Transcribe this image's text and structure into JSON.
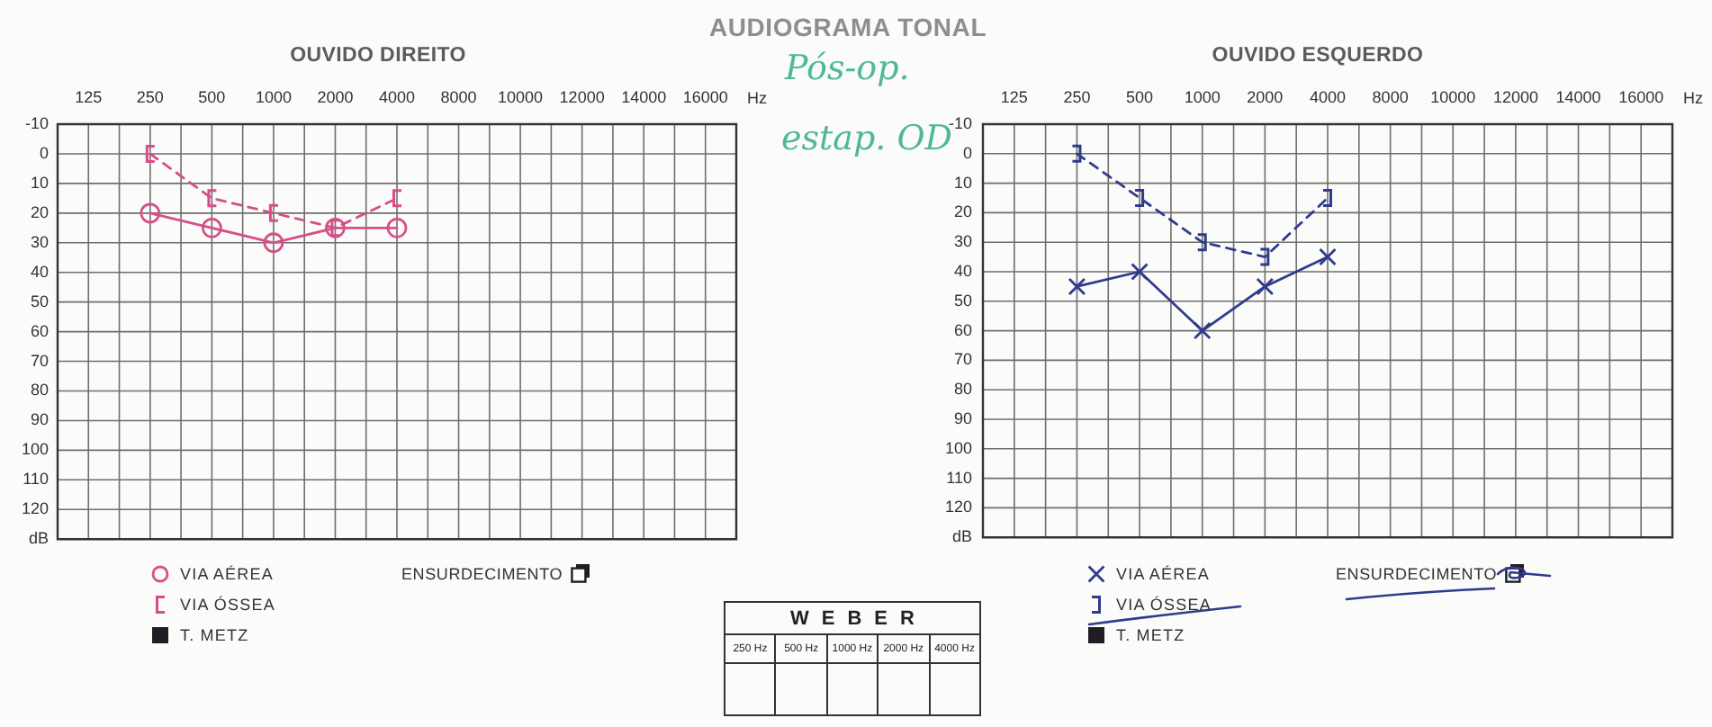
{
  "chart_data": [
    {
      "type": "other",
      "title": "AUDIOGRAMA TONAL",
      "annotations": [
        "Pós-op.",
        "estap. OD"
      ]
    },
    {
      "type": "line",
      "title": "OUVIDO DIREITO",
      "categories": [
        "125",
        "250",
        "500",
        "1000",
        "2000",
        "4000",
        "8000",
        "10000",
        "12000",
        "14000",
        "16000"
      ],
      "xlabel": "Hz",
      "ylim": [
        130,
        -10
      ],
      "yticks": [
        -10,
        0,
        10,
        20,
        30,
        40,
        50,
        60,
        70,
        80,
        90,
        100,
        110,
        120,
        {
          "value": 130,
          "label": "dB"
        }
      ],
      "grid": true,
      "legend": "bottom",
      "series": [
        {
          "name": "VIA AÉREA",
          "color": "#d64f88",
          "marker": "circle",
          "line_style": "solid",
          "values": [
            null,
            20,
            25,
            30,
            25,
            25,
            null,
            null,
            null,
            null,
            null
          ]
        },
        {
          "name": "VIA ÓSSEA",
          "color": "#d64f88",
          "marker": "square",
          "line_style": "dashed",
          "values": [
            null,
            0,
            15,
            20,
            25,
            15,
            null,
            null,
            null,
            null,
            null
          ]
        }
      ],
      "annotations": [
        "T. METZ",
        "ENSURDECIMENTO"
      ]
    },
    {
      "type": "line",
      "title": "OUVIDO ESQUERDO",
      "categories": [
        "125",
        "250",
        "500",
        "1000",
        "2000",
        "4000",
        "8000",
        "10000",
        "12000",
        "14000",
        "16000"
      ],
      "xlabel": "Hz",
      "ylim": [
        130,
        -10
      ],
      "yticks": [
        -10,
        0,
        10,
        20,
        30,
        40,
        50,
        60,
        70,
        80,
        90,
        100,
        110,
        120,
        {
          "value": 130,
          "label": "dB"
        }
      ],
      "grid": true,
      "legend": "bottom",
      "series": [
        {
          "name": "VIA AÉREA",
          "color": "#2f3b8c",
          "marker": "cross",
          "line_style": "solid",
          "values": [
            null,
            45,
            40,
            60,
            45,
            35,
            null,
            null,
            null,
            null,
            null
          ]
        },
        {
          "name": "VIA ÓSSEA",
          "color": "#2f3b8c",
          "marker": "square",
          "line_style": "dashed",
          "values": [
            null,
            0,
            15,
            30,
            35,
            15,
            null,
            null,
            null,
            null,
            null
          ]
        }
      ],
      "annotations": [
        "T. METZ",
        "ENSURDECIMENTO"
      ]
    },
    {
      "type": "other",
      "title": "WEBER",
      "annotations": [
        "250 Hz",
        "500 Hz",
        "1000 Hz",
        "2000 Hz",
        "4000 Hz"
      ]
    }
  ]
}
